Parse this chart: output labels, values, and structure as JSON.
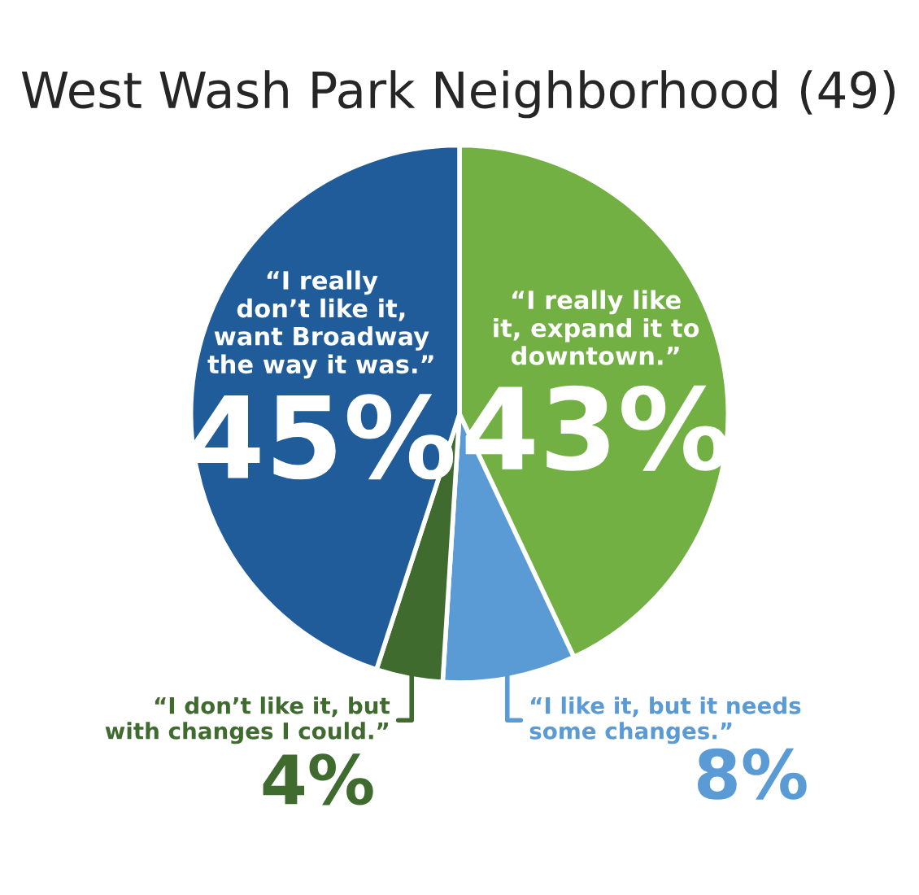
{
  "chart_data": {
    "type": "pie",
    "title": "West Wash Park Neighborhood (49)",
    "categories": [
      "“I really like\nit, expand it to\ndowntown.”",
      "“I like it, but it needs\nsome changes.”",
      "“I don’t like it, but\nwith changes I could.”",
      "“I really\ndon’t like it,\nwant Broadway\nthe way it was.”"
    ],
    "values": [
      43,
      8,
      4,
      45
    ],
    "value_labels": [
      "43%",
      "8%",
      "4%",
      "45%"
    ],
    "colors": [
      "#72b043",
      "#5b9bd5",
      "#3f6b2f",
      "#1f5c99"
    ],
    "legend": false
  }
}
